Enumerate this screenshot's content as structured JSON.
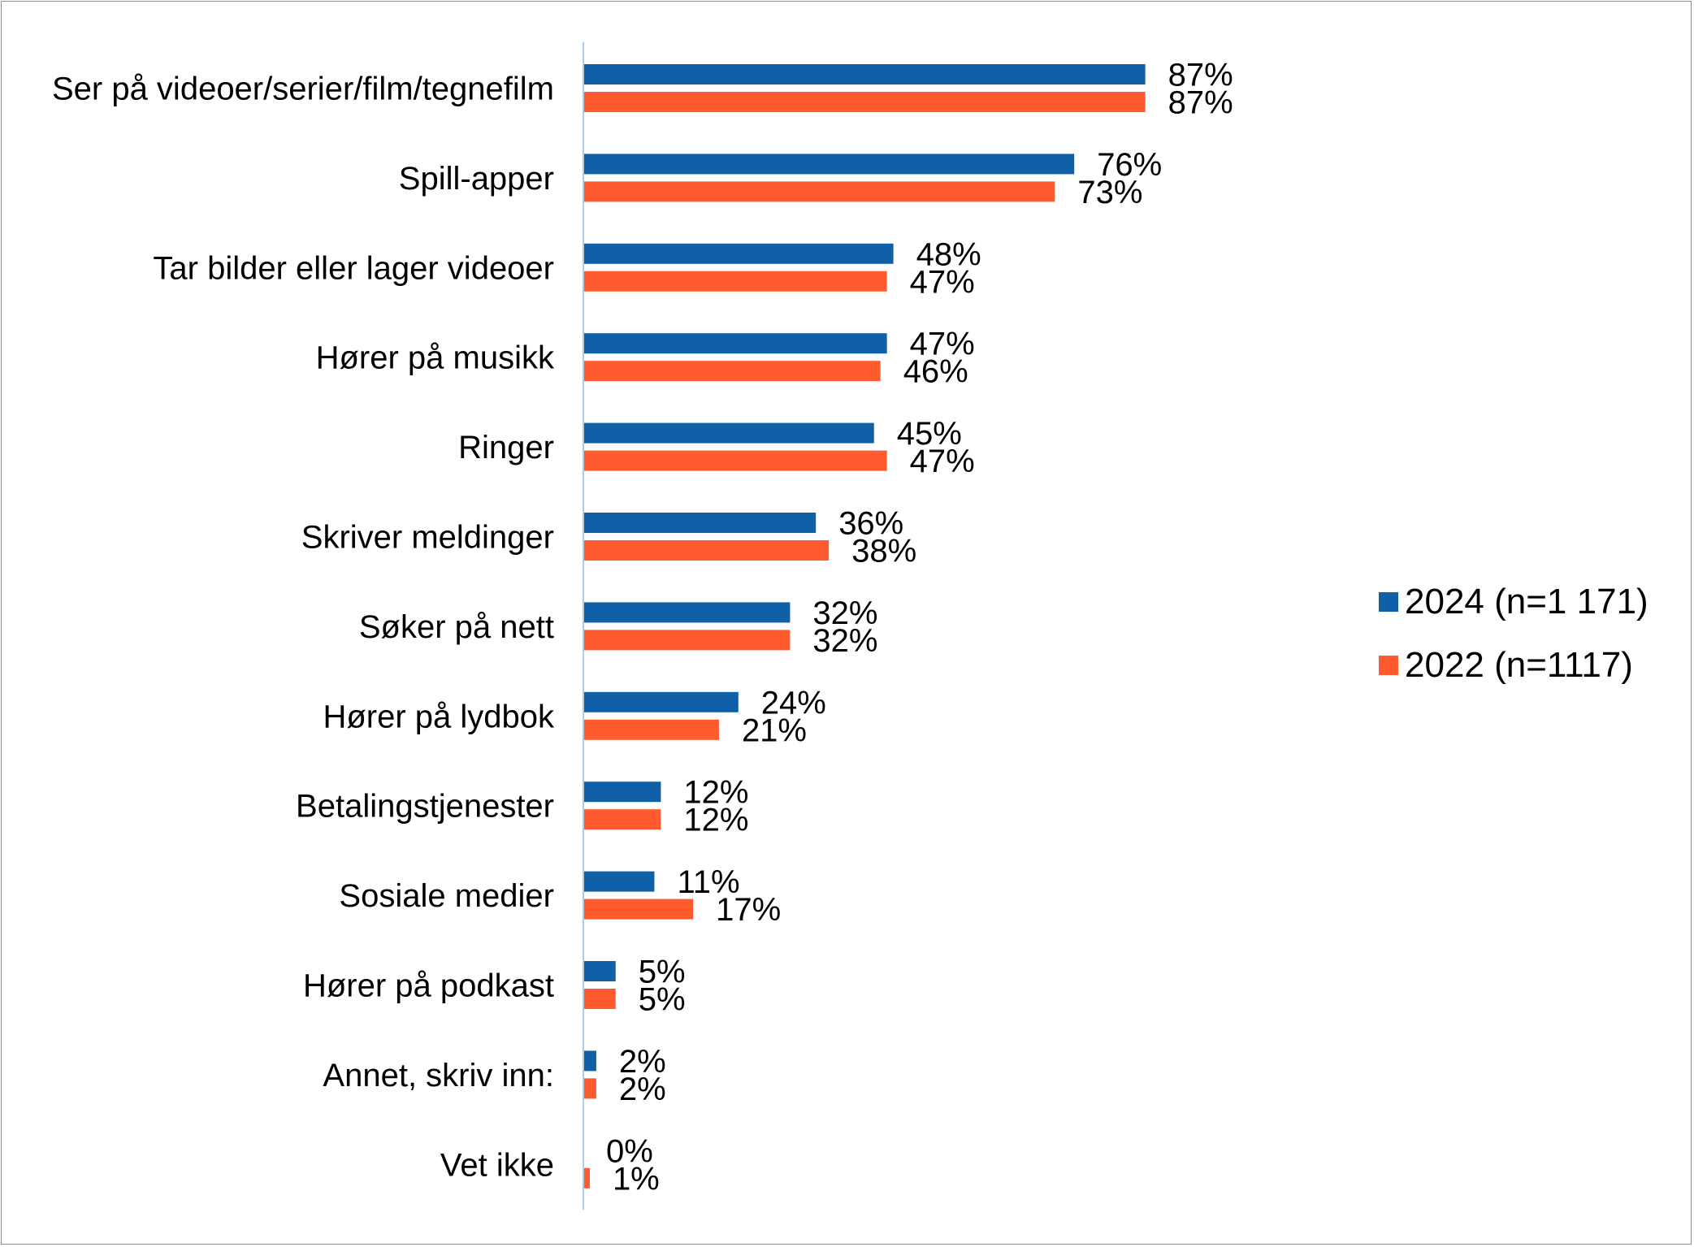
{
  "chart_data": {
    "type": "bar",
    "orientation": "horizontal",
    "categories": [
      "Ser på videoer/serier/film/tegnefilm",
      "Spill-apper",
      "Tar bilder eller lager videoer",
      "Hører på musikk",
      "Ringer",
      "Skriver meldinger",
      "Søker på nett",
      "Hører på lydbok",
      "Betalingstjenester",
      "Sosiale medier",
      "Hører på podkast",
      "Annet, skriv inn:",
      "Vet ikke"
    ],
    "series": [
      {
        "name": "2024 (n=1 171)",
        "color": "#1060A8",
        "values": [
          87,
          76,
          48,
          47,
          45,
          36,
          32,
          24,
          12,
          11,
          5,
          2,
          0
        ],
        "labels": [
          "87%",
          "76%",
          "48%",
          "47%",
          "45%",
          "36%",
          "32%",
          "24%",
          "12%",
          "11%",
          "5%",
          "2%",
          "0%"
        ]
      },
      {
        "name": "2022 (n=1117)",
        "color": "#FF5B2E",
        "values": [
          87,
          73,
          47,
          46,
          47,
          38,
          32,
          21,
          12,
          17,
          5,
          2,
          1
        ],
        "labels": [
          "87%",
          "73%",
          "47%",
          "46%",
          "47%",
          "38%",
          "32%",
          "21%",
          "12%",
          "17%",
          "5%",
          "2%",
          "1%"
        ]
      }
    ],
    "xlim": [
      0,
      100
    ],
    "grid": false,
    "legend_position": "right",
    "axis_color": "#B4C7E7"
  }
}
